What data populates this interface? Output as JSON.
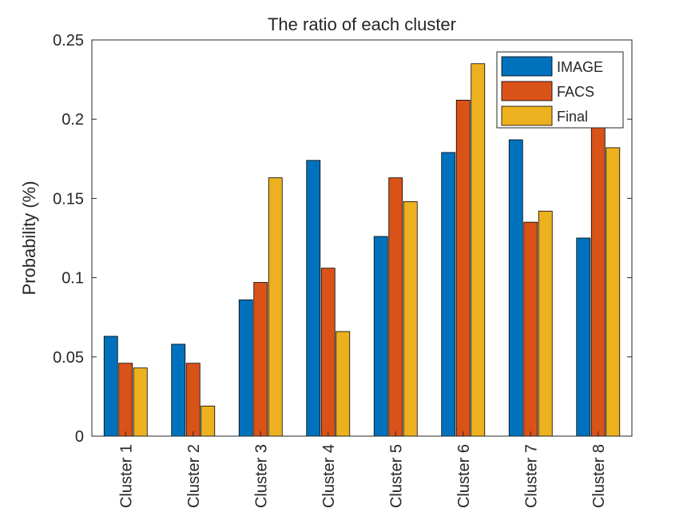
{
  "chart_data": {
    "type": "bar",
    "title": "The ratio of each cluster",
    "xlabel": "",
    "ylabel": "Probability (%)",
    "categories": [
      "Cluster 1",
      "Cluster 2",
      "Cluster 3",
      "Cluster 4",
      "Cluster 5",
      "Cluster 6",
      "Cluster 7",
      "Cluster 8"
    ],
    "yticks": [
      "0",
      "0.05",
      "0.1",
      "0.15",
      "0.2",
      "0.25"
    ],
    "ylim": [
      0,
      0.25
    ],
    "grid": false,
    "legend_position": "top-right",
    "series": [
      {
        "name": "IMAGE",
        "color": "#0072BD",
        "values": [
          0.063,
          0.058,
          0.086,
          0.174,
          0.126,
          0.179,
          0.187,
          0.125
        ]
      },
      {
        "name": "FACS",
        "color": "#D95319",
        "values": [
          0.046,
          0.046,
          0.097,
          0.106,
          0.163,
          0.212,
          0.135,
          0.198
        ]
      },
      {
        "name": "Final",
        "color": "#EDB120",
        "values": [
          0.043,
          0.019,
          0.163,
          0.066,
          0.148,
          0.235,
          0.142,
          0.182
        ]
      }
    ]
  }
}
